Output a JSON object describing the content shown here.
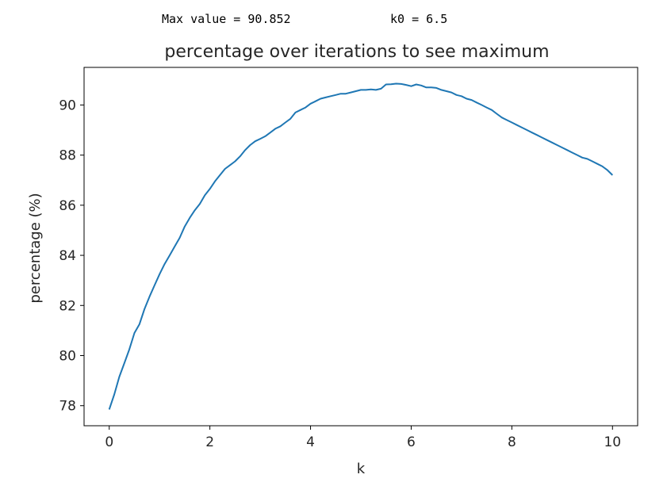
{
  "output": {
    "max_value_text": "Max value = 90.852",
    "k0_text": "k0 = 6.5"
  },
  "chart_data": {
    "type": "line",
    "title": "percentage over iterations to see maximum",
    "xlabel": "k",
    "ylabel": "percentage (%)",
    "xlim": [
      -0.5,
      10.5
    ],
    "ylim": [
      77.2,
      91.5
    ],
    "xticks": [
      0,
      2,
      4,
      6,
      8,
      10
    ],
    "yticks": [
      78,
      80,
      82,
      84,
      86,
      88,
      90
    ],
    "grid": false,
    "line_color": "#1f77b4",
    "series": [
      {
        "x": [
          0,
          0.1,
          0.2,
          0.3,
          0.4,
          0.5,
          0.6,
          0.7,
          0.8,
          0.9,
          1.0,
          1.1,
          1.2,
          1.3,
          1.4,
          1.5,
          1.6,
          1.7,
          1.8,
          1.9,
          2.0,
          2.1,
          2.2,
          2.3,
          2.4,
          2.5,
          2.6,
          2.7,
          2.8,
          2.9,
          3.0,
          3.1,
          3.2,
          3.3,
          3.4,
          3.5,
          3.6,
          3.7,
          3.8,
          3.9,
          4.0,
          4.1,
          4.2,
          4.3,
          4.4,
          4.5,
          4.6,
          4.7,
          4.8,
          4.9,
          5.0,
          5.1,
          5.2,
          5.3,
          5.4,
          5.5,
          5.6,
          5.7,
          5.8,
          5.9,
          6.0,
          6.1,
          6.2,
          6.3,
          6.4,
          6.5,
          6.6,
          6.7,
          6.8,
          6.9,
          7.0,
          7.1,
          7.2,
          7.3,
          7.4,
          7.5,
          7.6,
          7.7,
          7.8,
          7.9,
          8.0,
          8.1,
          8.2,
          8.3,
          8.4,
          8.5,
          8.6,
          8.7,
          8.8,
          8.9,
          9.0,
          9.1,
          9.2,
          9.3,
          9.4,
          9.5,
          9.6,
          9.7,
          9.8,
          9.9,
          10.0
        ],
        "y": [
          77.85,
          78.45,
          79.15,
          79.7,
          80.25,
          80.9,
          81.25,
          81.85,
          82.35,
          82.8,
          83.25,
          83.65,
          84.0,
          84.35,
          84.7,
          85.15,
          85.5,
          85.8,
          86.05,
          86.4,
          86.65,
          86.95,
          87.2,
          87.45,
          87.6,
          87.75,
          87.95,
          88.2,
          88.4,
          88.55,
          88.65,
          88.75,
          88.9,
          89.05,
          89.15,
          89.3,
          89.45,
          89.7,
          89.8,
          89.9,
          90.05,
          90.15,
          90.25,
          90.3,
          90.35,
          90.4,
          90.45,
          90.45,
          90.5,
          90.55,
          90.6,
          90.6,
          90.62,
          90.6,
          90.65,
          90.82,
          90.83,
          90.852,
          90.84,
          90.8,
          90.75,
          90.82,
          90.78,
          90.7,
          90.7,
          90.68,
          90.6,
          90.55,
          90.5,
          90.4,
          90.35,
          90.25,
          90.2,
          90.1,
          90.0,
          89.9,
          89.8,
          89.65,
          89.5,
          89.4,
          89.3,
          89.2,
          89.1,
          89.0,
          88.9,
          88.8,
          88.7,
          88.6,
          88.5,
          88.4,
          88.3,
          88.2,
          88.1,
          88.0,
          87.9,
          87.85,
          87.75,
          87.65,
          87.55,
          87.4,
          87.2
        ]
      }
    ]
  }
}
